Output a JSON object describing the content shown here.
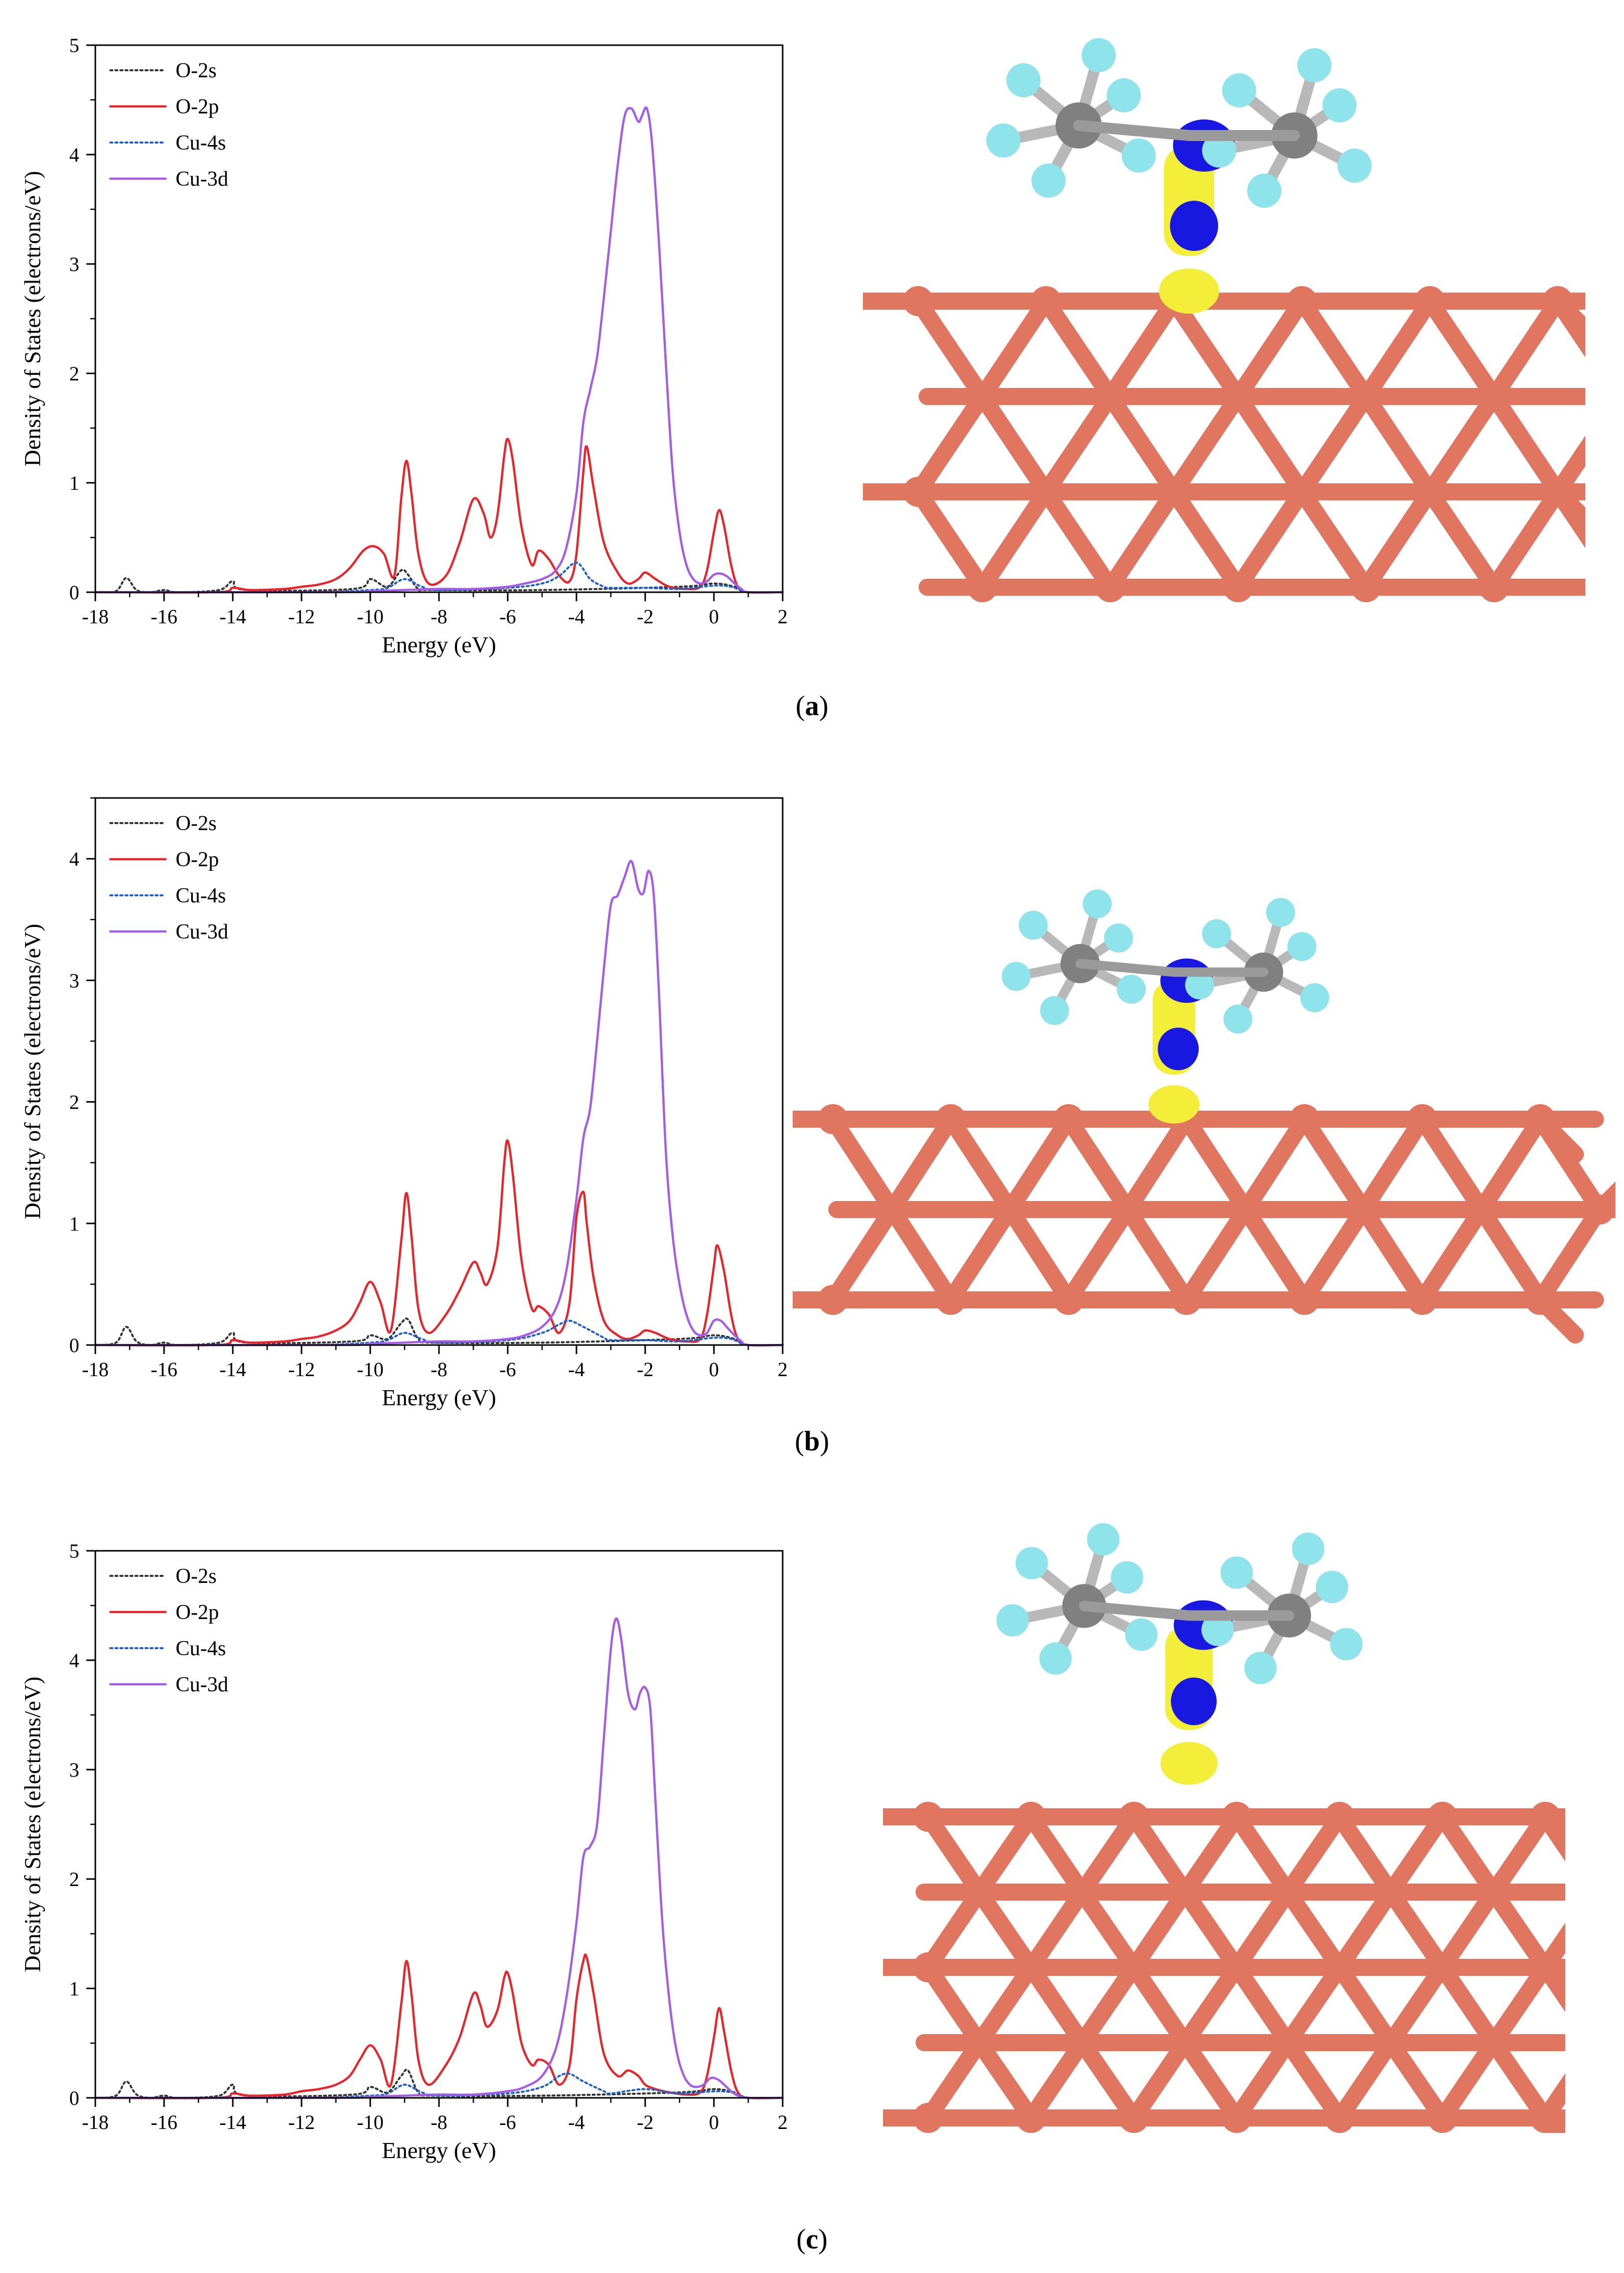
{
  "colors": {
    "O-2s": "#333333",
    "O-2p": "#e8252b",
    "Cu-4s": "#1f5fc8",
    "Cu-3d": "#a45ee5",
    "copper": "#e07560",
    "copper_dark": "#7a3a2e",
    "carbon": "#808080",
    "fluorine": "#8fe3ea",
    "isosurface_yellow": "#f2ee3a",
    "isosurface_blue": "#1818e0"
  },
  "chart_data": [
    {
      "id": "a",
      "type": "line",
      "caption_open": "(",
      "caption_letter": "a",
      "caption_close": ")",
      "xlabel": "Energy (eV)",
      "ylabel": "Density of States (electrons/eV)",
      "xlim": [
        -18,
        2
      ],
      "ylim": [
        0,
        5
      ],
      "xticks": [
        -18,
        -16,
        -14,
        -12,
        -10,
        -8,
        -6,
        -4,
        -2,
        0,
        2
      ],
      "yticks": [
        0,
        1,
        2,
        3,
        4,
        5
      ],
      "legend_position": "top-left",
      "series": [
        {
          "name": "O-2s",
          "style": "dotted",
          "x": [
            -18,
            -17.4,
            -17.1,
            -16.8,
            -16.4,
            -16,
            -15.6,
            -14.4,
            -14,
            -13.6,
            -10.5,
            -10,
            -9.5,
            -9.1,
            -8.9,
            -8.6,
            -8.2,
            -5,
            -1,
            0,
            0.6,
            1,
            2
          ],
          "y": [
            0,
            0.01,
            0.13,
            0.02,
            0,
            0.02,
            0,
            0.02,
            0.1,
            0.02,
            0.03,
            0.12,
            0.05,
            0.2,
            0.16,
            0.03,
            0.02,
            0.02,
            0.05,
            0.08,
            0.05,
            0,
            0
          ]
        },
        {
          "name": "O-2p",
          "style": "solid",
          "x": [
            -18,
            -14.5,
            -14,
            -13.5,
            -12.5,
            -12,
            -11.5,
            -11,
            -10.6,
            -10.2,
            -9.9,
            -9.6,
            -9.3,
            -9.1,
            -8.95,
            -8.8,
            -8.6,
            -8.3,
            -7.8,
            -7.4,
            -7,
            -6.7,
            -6.5,
            -6.3,
            -6.1,
            -6,
            -5.85,
            -5.6,
            -5.3,
            -5.1,
            -4.8,
            -4.5,
            -4.2,
            -4,
            -3.8,
            -3.7,
            -3.5,
            -3.2,
            -2.8,
            -2.5,
            -2.2,
            -2,
            -1.7,
            -1.3,
            -0.8,
            -0.4,
            -0.2,
            0,
            0.15,
            0.3,
            0.5,
            0.7,
            1,
            2
          ],
          "y": [
            0,
            0,
            0.04,
            0.02,
            0.03,
            0.05,
            0.07,
            0.12,
            0.22,
            0.38,
            0.42,
            0.35,
            0.15,
            0.85,
            1.2,
            0.9,
            0.35,
            0.08,
            0.15,
            0.45,
            0.85,
            0.72,
            0.5,
            0.7,
            1.25,
            1.4,
            1.2,
            0.6,
            0.25,
            0.38,
            0.3,
            0.15,
            0.1,
            0.35,
            1.1,
            1.33,
            0.95,
            0.45,
            0.18,
            0.08,
            0.12,
            0.18,
            0.12,
            0.05,
            0.03,
            0.05,
            0.2,
            0.55,
            0.75,
            0.6,
            0.25,
            0.05,
            0,
            0
          ]
        },
        {
          "name": "Cu-4s",
          "style": "dotted",
          "x": [
            -18,
            -12,
            -10,
            -9.5,
            -9,
            -8.5,
            -8,
            -6,
            -5,
            -4.5,
            -4,
            -3.6,
            -3.2,
            -3,
            -2,
            -1,
            0,
            0.5,
            1,
            2
          ],
          "y": [
            0,
            0,
            0.02,
            0.04,
            0.12,
            0.05,
            0.02,
            0.04,
            0.08,
            0.15,
            0.27,
            0.12,
            0.05,
            0.04,
            0.04,
            0.03,
            0.06,
            0.05,
            0,
            0
          ]
        },
        {
          "name": "Cu-3d",
          "style": "solid",
          "x": [
            -18,
            -11,
            -10,
            -9,
            -8,
            -7,
            -6,
            -5.5,
            -5,
            -4.6,
            -4.3,
            -4,
            -3.8,
            -3.6,
            -3.4,
            -3.2,
            -3,
            -2.8,
            -2.6,
            -2.4,
            -2.2,
            -2.1,
            -1.95,
            -1.8,
            -1.6,
            -1.4,
            -1.2,
            -1,
            -0.8,
            -0.6,
            -0.4,
            -0.2,
            0,
            0.2,
            0.4,
            0.6,
            0.8,
            1,
            2
          ],
          "y": [
            0,
            0,
            0.01,
            0.02,
            0.03,
            0.03,
            0.05,
            0.08,
            0.12,
            0.2,
            0.4,
            0.9,
            1.55,
            1.85,
            2.15,
            2.7,
            3.3,
            3.9,
            4.35,
            4.42,
            4.3,
            4.35,
            4.42,
            4.1,
            3.2,
            2.1,
            1.1,
            0.55,
            0.25,
            0.12,
            0.08,
            0.1,
            0.16,
            0.17,
            0.14,
            0.08,
            0.03,
            0,
            0
          ]
        }
      ]
    },
    {
      "id": "b",
      "type": "line",
      "caption_open": "(",
      "caption_letter": "b",
      "caption_close": ")",
      "xlabel": "Energy (eV)",
      "ylabel": "Density of States (electrons/eV)",
      "xlim": [
        -18,
        2
      ],
      "ylim": [
        0,
        4.5
      ],
      "xticks": [
        -18,
        -16,
        -14,
        -12,
        -10,
        -8,
        -6,
        -4,
        -2,
        0,
        2
      ],
      "yticks": [
        0,
        1,
        2,
        3,
        4
      ],
      "legend_position": "top-left",
      "series": [
        {
          "name": "O-2s",
          "style": "dotted",
          "x": [
            -18,
            -17.4,
            -17.1,
            -16.8,
            -16.4,
            -16,
            -15.6,
            -14.4,
            -14,
            -13.6,
            -10.5,
            -10,
            -9.5,
            -9.1,
            -8.9,
            -8.6,
            -8.2,
            -5,
            -1,
            0,
            0.6,
            1,
            2
          ],
          "y": [
            0,
            0.02,
            0.15,
            0.03,
            0,
            0.02,
            0,
            0.02,
            0.1,
            0.02,
            0.03,
            0.08,
            0.05,
            0.18,
            0.21,
            0.05,
            0.02,
            0.02,
            0.05,
            0.08,
            0.05,
            0,
            0
          ]
        },
        {
          "name": "O-2p",
          "style": "solid",
          "x": [
            -18,
            -14.5,
            -14,
            -13.5,
            -12.5,
            -12,
            -11.5,
            -11,
            -10.6,
            -10.3,
            -10,
            -9.7,
            -9.4,
            -9.1,
            -8.95,
            -8.8,
            -8.6,
            -8.3,
            -7.8,
            -7.4,
            -7,
            -6.8,
            -6.6,
            -6.3,
            -6.1,
            -6,
            -5.85,
            -5.6,
            -5.3,
            -5.1,
            -4.8,
            -4.5,
            -4.2,
            -4,
            -3.8,
            -3.7,
            -3.5,
            -3.2,
            -2.8,
            -2.5,
            -2.2,
            -2,
            -1.7,
            -1.3,
            -0.8,
            -0.4,
            -0.2,
            0,
            0.1,
            0.3,
            0.5,
            0.7,
            1,
            2
          ],
          "y": [
            0,
            0,
            0.04,
            0.02,
            0.03,
            0.05,
            0.07,
            0.12,
            0.2,
            0.35,
            0.52,
            0.35,
            0.12,
            0.85,
            1.25,
            0.9,
            0.3,
            0.1,
            0.25,
            0.45,
            0.68,
            0.6,
            0.5,
            0.8,
            1.5,
            1.68,
            1.4,
            0.7,
            0.3,
            0.32,
            0.25,
            0.1,
            0.35,
            1.05,
            1.26,
            1.0,
            0.55,
            0.2,
            0.08,
            0.05,
            0.08,
            0.12,
            0.1,
            0.05,
            0.03,
            0.05,
            0.25,
            0.65,
            0.82,
            0.6,
            0.25,
            0.05,
            0,
            0
          ]
        },
        {
          "name": "Cu-4s",
          "style": "dotted",
          "x": [
            -18,
            -12,
            -10,
            -9.5,
            -9,
            -8.5,
            -8,
            -6,
            -5,
            -4.5,
            -4.2,
            -3.8,
            -3.2,
            -3,
            -2,
            -1,
            0,
            0.5,
            1,
            2
          ],
          "y": [
            0,
            0,
            0.02,
            0.04,
            0.1,
            0.05,
            0.02,
            0.04,
            0.1,
            0.17,
            0.2,
            0.15,
            0.06,
            0.04,
            0.04,
            0.03,
            0.06,
            0.05,
            0,
            0
          ]
        },
        {
          "name": "Cu-3d",
          "style": "solid",
          "x": [
            -18,
            -11,
            -10,
            -9,
            -8,
            -7,
            -6,
            -5.5,
            -5,
            -4.6,
            -4.3,
            -4,
            -3.8,
            -3.6,
            -3.4,
            -3.2,
            -3,
            -2.8,
            -2.6,
            -2.4,
            -2.2,
            -2.05,
            -1.9,
            -1.75,
            -1.6,
            -1.4,
            -1.2,
            -1,
            -0.8,
            -0.6,
            -0.4,
            -0.2,
            0,
            0.2,
            0.4,
            0.6,
            0.8,
            1,
            2
          ],
          "y": [
            0,
            0,
            0.01,
            0.02,
            0.03,
            0.03,
            0.05,
            0.08,
            0.15,
            0.3,
            0.6,
            1.2,
            1.7,
            1.95,
            2.5,
            3.1,
            3.62,
            3.7,
            3.85,
            3.98,
            3.75,
            3.72,
            3.9,
            3.7,
            2.9,
            1.6,
            0.9,
            0.5,
            0.25,
            0.12,
            0.08,
            0.1,
            0.2,
            0.2,
            0.14,
            0.08,
            0.03,
            0,
            0
          ]
        }
      ]
    },
    {
      "id": "c",
      "type": "line",
      "caption_open": "(",
      "caption_letter": "c",
      "caption_close": ")",
      "xlabel": "Energy (eV)",
      "ylabel": "Density of States (electrons/eV)",
      "xlim": [
        -18,
        2
      ],
      "ylim": [
        0,
        5
      ],
      "xticks": [
        -18,
        -16,
        -14,
        -12,
        -10,
        -8,
        -6,
        -4,
        -2,
        0,
        2
      ],
      "yticks": [
        0,
        1,
        2,
        3,
        4,
        5
      ],
      "legend_position": "top-left",
      "series": [
        {
          "name": "O-2s",
          "style": "dotted",
          "x": [
            -18,
            -17.4,
            -17.1,
            -16.8,
            -16.4,
            -16,
            -15.6,
            -14.4,
            -14,
            -13.6,
            -10.5,
            -10,
            -9.5,
            -9.1,
            -8.9,
            -8.6,
            -8.2,
            -5,
            -1,
            0,
            0.6,
            1,
            2
          ],
          "y": [
            0,
            0.02,
            0.15,
            0.03,
            0,
            0.02,
            0,
            0.02,
            0.12,
            0.02,
            0.03,
            0.1,
            0.05,
            0.2,
            0.25,
            0.05,
            0.02,
            0.02,
            0.05,
            0.08,
            0.05,
            0,
            0
          ]
        },
        {
          "name": "O-2p",
          "style": "solid",
          "x": [
            -18,
            -14.5,
            -14,
            -13.5,
            -12.5,
            -12,
            -11.5,
            -11,
            -10.6,
            -10.3,
            -10,
            -9.7,
            -9.4,
            -9.1,
            -8.95,
            -8.8,
            -8.6,
            -8.3,
            -7.8,
            -7.4,
            -7,
            -6.8,
            -6.6,
            -6.3,
            -6.1,
            -6,
            -5.85,
            -5.6,
            -5.3,
            -5.1,
            -4.8,
            -4.5,
            -4.2,
            -4,
            -3.8,
            -3.7,
            -3.5,
            -3.2,
            -2.8,
            -2.5,
            -2.2,
            -2,
            -1.7,
            -1.3,
            -0.8,
            -0.4,
            -0.2,
            0,
            0.15,
            0.3,
            0.5,
            0.7,
            1,
            2
          ],
          "y": [
            0,
            0,
            0.04,
            0.02,
            0.03,
            0.06,
            0.08,
            0.12,
            0.2,
            0.35,
            0.48,
            0.35,
            0.12,
            0.85,
            1.25,
            0.95,
            0.35,
            0.12,
            0.3,
            0.55,
            0.95,
            0.85,
            0.65,
            0.8,
            1.1,
            1.14,
            0.95,
            0.5,
            0.3,
            0.35,
            0.3,
            0.12,
            0.3,
            0.9,
            1.25,
            1.28,
            0.95,
            0.4,
            0.2,
            0.25,
            0.2,
            0.12,
            0.08,
            0.05,
            0.03,
            0.05,
            0.2,
            0.55,
            0.82,
            0.6,
            0.25,
            0.05,
            0,
            0
          ]
        },
        {
          "name": "Cu-4s",
          "style": "dotted",
          "x": [
            -18,
            -12,
            -10,
            -9.5,
            -9,
            -8.5,
            -8,
            -6,
            -5,
            -4.5,
            -4.2,
            -3.8,
            -3.2,
            -3,
            -2,
            -1,
            0,
            0.5,
            1,
            2
          ],
          "y": [
            0,
            0,
            0.02,
            0.04,
            0.12,
            0.05,
            0.02,
            0.04,
            0.1,
            0.2,
            0.22,
            0.15,
            0.06,
            0.04,
            0.08,
            0.04,
            0.06,
            0.05,
            0,
            0
          ]
        },
        {
          "name": "Cu-3d",
          "style": "solid",
          "x": [
            -18,
            -11,
            -10,
            -9,
            -8,
            -7,
            -6,
            -5.5,
            -5,
            -4.6,
            -4.3,
            -4,
            -3.8,
            -3.6,
            -3.4,
            -3.2,
            -3,
            -2.85,
            -2.7,
            -2.5,
            -2.3,
            -2.15,
            -2,
            -1.85,
            -1.7,
            -1.5,
            -1.3,
            -1.1,
            -0.9,
            -0.7,
            -0.5,
            -0.3,
            -0.1,
            0.1,
            0.3,
            0.5,
            0.7,
            1,
            2
          ],
          "y": [
            0,
            0,
            0.01,
            0.02,
            0.03,
            0.03,
            0.06,
            0.1,
            0.2,
            0.45,
            0.9,
            1.6,
            2.2,
            2.3,
            2.5,
            3.3,
            4.1,
            4.38,
            4.2,
            3.7,
            3.55,
            3.7,
            3.75,
            3.55,
            2.7,
            1.6,
            0.9,
            0.45,
            0.22,
            0.12,
            0.1,
            0.12,
            0.18,
            0.17,
            0.12,
            0.06,
            0.02,
            0,
            0
          ]
        }
      ]
    }
  ]
}
